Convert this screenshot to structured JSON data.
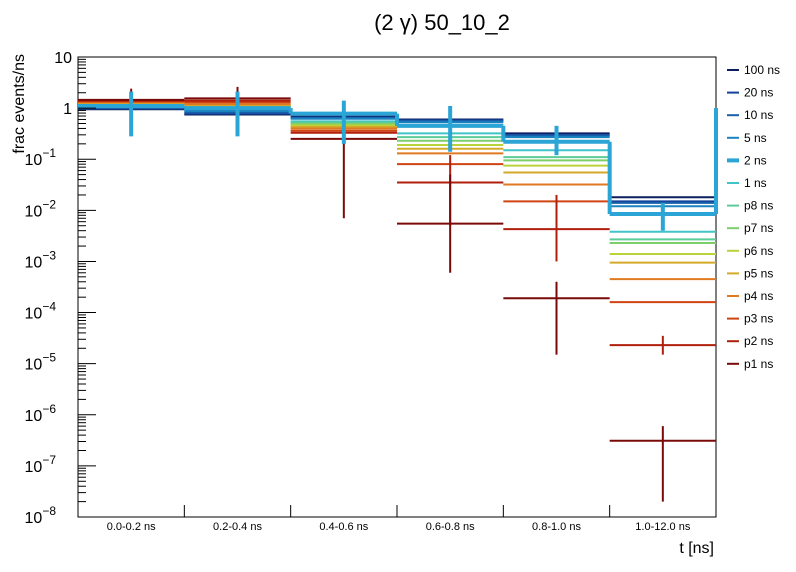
{
  "chart_data": {
    "type": "line",
    "title": "(2 γ) 50_10_2",
    "xlabel": "t [ns]",
    "ylabel": "frac events/ns",
    "yscale": "log",
    "ylim": [
      1e-08,
      10
    ],
    "y_ticks": [
      {
        "value": 10,
        "mant": "10",
        "exp": ""
      },
      {
        "value": 1,
        "mant": "1",
        "exp": ""
      },
      {
        "value": 0.1,
        "mant": "10",
        "exp": "−1"
      },
      {
        "value": 0.01,
        "mant": "10",
        "exp": "−2"
      },
      {
        "value": 0.001,
        "mant": "10",
        "exp": "−3"
      },
      {
        "value": 0.0001,
        "mant": "10",
        "exp": "−4"
      },
      {
        "value": 1e-05,
        "mant": "10",
        "exp": "−5"
      },
      {
        "value": 1e-06,
        "mant": "10",
        "exp": "−6"
      },
      {
        "value": 1e-07,
        "mant": "10",
        "exp": "−7"
      },
      {
        "value": 1e-08,
        "mant": "10",
        "exp": "−8"
      }
    ],
    "categories": [
      "0.0-0.2 ns",
      "0.2-0.4 ns",
      "0.4-0.6 ns",
      "0.6-0.8 ns",
      "0.8-1.0 ns",
      "1.0-12.0 ns"
    ],
    "series": [
      {
        "name": "100 ns",
        "color": "#0b1f5e",
        "values": [
          0.95,
          0.75,
          0.68,
          0.6,
          0.32,
          0.018
        ],
        "errors": []
      },
      {
        "name": "20 ns",
        "color": "#14419a",
        "values": [
          0.98,
          0.78,
          0.66,
          0.58,
          0.3,
          0.015
        ],
        "errors": []
      },
      {
        "name": "10 ns",
        "color": "#175fa8",
        "values": [
          1.0,
          0.82,
          0.64,
          0.56,
          0.29,
          0.014
        ],
        "errors": []
      },
      {
        "name": "5 ns",
        "color": "#1a82bf",
        "values": [
          1.05,
          0.88,
          0.62,
          0.53,
          0.27,
          0.012
        ],
        "errors": []
      },
      {
        "name": "2 ns",
        "color": "#2ba4d6",
        "values": [
          1.1,
          1.0,
          0.78,
          0.45,
          0.22,
          0.0085
        ],
        "errors": [
          [
            0.28,
            2.1
          ],
          [
            0.28,
            2.1
          ],
          [
            0.2,
            1.4
          ],
          [
            0.14,
            1.1
          ],
          [
            0.12,
            0.45
          ],
          [
            0.004,
            0.014
          ]
        ]
      },
      {
        "name": "1 ns",
        "color": "#3ec4c9",
        "values": [
          1.15,
          1.05,
          0.55,
          0.32,
          0.15,
          0.0038
        ],
        "errors": []
      },
      {
        "name": "p8 ns",
        "color": "#5dcc9a",
        "values": [
          1.18,
          1.08,
          0.52,
          0.27,
          0.11,
          0.0027
        ],
        "errors": []
      },
      {
        "name": "p7 ns",
        "color": "#7ccf6a",
        "values": [
          1.2,
          1.1,
          0.49,
          0.23,
          0.095,
          0.0023
        ],
        "errors": []
      },
      {
        "name": "p6 ns",
        "color": "#b8d43a",
        "values": [
          1.22,
          1.12,
          0.46,
          0.19,
          0.075,
          0.0014
        ],
        "errors": []
      },
      {
        "name": "p5 ns",
        "color": "#d4aa2a",
        "values": [
          1.25,
          1.15,
          0.43,
          0.16,
          0.055,
          0.00095
        ],
        "errors": []
      },
      {
        "name": "p4 ns",
        "color": "#e07a20",
        "values": [
          1.3,
          1.2,
          0.4,
          0.13,
          0.032,
          0.00045
        ],
        "errors": []
      },
      {
        "name": "p3 ns",
        "color": "#d04412",
        "values": [
          1.35,
          1.3,
          0.36,
          0.08,
          0.015,
          0.00016
        ],
        "errors": []
      },
      {
        "name": "p2 ns",
        "color": "#b01f0c",
        "values": [
          1.4,
          1.4,
          0.33,
          0.035,
          0.0043,
          2.3e-05
        ],
        "errors": [
          [],
          [],
          [],
          [
            0.005,
            0.12
          ],
          [
            0.001,
            0.02
          ],
          [
            1.5e-05,
            3.5e-05
          ]
        ]
      },
      {
        "name": "p1 ns",
        "color": "#7a0a08",
        "values": [
          1.45,
          1.55,
          0.25,
          0.0055,
          0.00019,
          3.1e-07
        ],
        "errors": [
          [
            0.9,
            2.4
          ],
          [
            0.9,
            2.6
          ],
          [
            0.007,
            1.3
          ],
          [
            0.0006,
            0.05
          ],
          [
            1.5e-05,
            0.0004
          ],
          [
            2e-08,
            6e-07
          ]
        ]
      }
    ]
  }
}
